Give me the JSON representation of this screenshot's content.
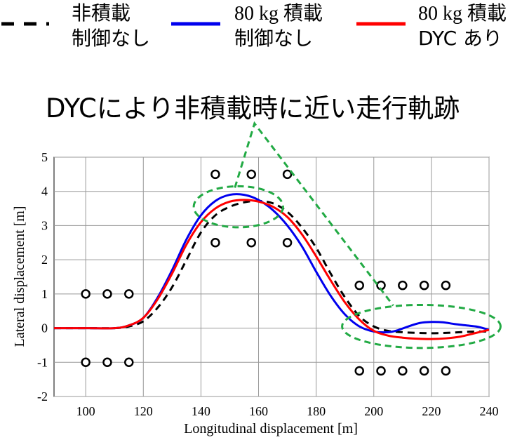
{
  "chart_data": {
    "type": "line",
    "title": "",
    "headline": "DYCにより非積載時に近い走行軌跡",
    "xlabel": "Longitudinal displacement [m]",
    "ylabel": "Lateral displacement [m]",
    "xlim": [
      89,
      240
    ],
    "ylim": [
      -2,
      5
    ],
    "xticks": [
      100,
      120,
      140,
      160,
      180,
      200,
      220,
      240
    ],
    "yticks": [
      -2,
      -1,
      0,
      1,
      2,
      3,
      4,
      5
    ],
    "grid": true,
    "legend": {
      "placement": "top",
      "entries": [
        {
          "line1": "非積載",
          "line2": "制御なし",
          "color": "#000000",
          "style": "dashed"
        },
        {
          "line1": "80 kg 積載",
          "line2": "制御なし",
          "color": "#0000ee",
          "style": "solid"
        },
        {
          "line1": "80 kg 積載",
          "line2": "DYC あり",
          "color": "#ff0000",
          "style": "solid"
        }
      ]
    },
    "series": [
      {
        "color": "#000000",
        "style": "dashed",
        "x": [
          89,
          100,
          110,
          115,
          120,
          125,
          130,
          135,
          140,
          145,
          150,
          155,
          160,
          165,
          170,
          175,
          180,
          185,
          190,
          195,
          200,
          205,
          210,
          215,
          220,
          225,
          230,
          235,
          240
        ],
        "y": [
          0,
          0,
          0,
          0.05,
          0.2,
          0.6,
          1.2,
          2.0,
          2.8,
          3.3,
          3.55,
          3.68,
          3.72,
          3.65,
          3.4,
          2.95,
          2.35,
          1.6,
          0.9,
          0.35,
          0.05,
          -0.08,
          -0.12,
          -0.14,
          -0.15,
          -0.14,
          -0.12,
          -0.1,
          -0.1
        ]
      },
      {
        "color": "#0000ee",
        "style": "solid",
        "x": [
          89,
          100,
          110,
          115,
          120,
          125,
          130,
          135,
          140,
          145,
          150,
          155,
          160,
          165,
          170,
          175,
          180,
          185,
          190,
          195,
          200,
          205,
          208,
          212,
          216,
          220,
          224,
          228,
          232,
          236,
          240
        ],
        "y": [
          0,
          0,
          0,
          0.08,
          0.3,
          0.9,
          1.7,
          2.6,
          3.3,
          3.72,
          3.9,
          3.9,
          3.75,
          3.45,
          3.0,
          2.4,
          1.65,
          0.95,
          0.4,
          0.05,
          -0.1,
          -0.12,
          -0.07,
          0.05,
          0.15,
          0.18,
          0.17,
          0.12,
          0.08,
          0.04,
          -0.05
        ]
      },
      {
        "color": "#ff0000",
        "style": "solid",
        "x": [
          89,
          100,
          110,
          115,
          120,
          125,
          130,
          135,
          140,
          145,
          150,
          155,
          160,
          165,
          170,
          175,
          180,
          185,
          190,
          195,
          200,
          205,
          210,
          215,
          220,
          225,
          230,
          235,
          240
        ],
        "y": [
          0,
          0,
          0,
          0.08,
          0.3,
          0.85,
          1.6,
          2.45,
          3.1,
          3.5,
          3.7,
          3.75,
          3.7,
          3.55,
          3.25,
          2.75,
          2.1,
          1.4,
          0.75,
          0.25,
          -0.08,
          -0.22,
          -0.28,
          -0.31,
          -0.32,
          -0.3,
          -0.25,
          -0.15,
          -0.05
        ]
      }
    ],
    "markers": [
      {
        "x": 100,
        "y": 1
      },
      {
        "x": 107.5,
        "y": 1
      },
      {
        "x": 115,
        "y": 1
      },
      {
        "x": 100,
        "y": -1
      },
      {
        "x": 107.5,
        "y": -1
      },
      {
        "x": 115,
        "y": -1
      },
      {
        "x": 145,
        "y": 4.5
      },
      {
        "x": 157.5,
        "y": 4.5
      },
      {
        "x": 170,
        "y": 4.5
      },
      {
        "x": 145,
        "y": 2.5
      },
      {
        "x": 157.5,
        "y": 2.5
      },
      {
        "x": 170,
        "y": 2.5
      },
      {
        "x": 195,
        "y": 1.25
      },
      {
        "x": 202.5,
        "y": 1.25
      },
      {
        "x": 210,
        "y": 1.25
      },
      {
        "x": 217.5,
        "y": 1.25
      },
      {
        "x": 225,
        "y": 1.25
      },
      {
        "x": 195,
        "y": -1.25
      },
      {
        "x": 202.5,
        "y": -1.25
      },
      {
        "x": 210,
        "y": -1.25
      },
      {
        "x": 217.5,
        "y": -1.25
      },
      {
        "x": 225,
        "y": -1.25
      }
    ],
    "annotation_ellipses": [
      {
        "cx": 153,
        "cy": 3.55,
        "rx": 15.5,
        "ry": 0.6,
        "color": "#22aa44"
      },
      {
        "cx": 216.5,
        "cy": 0.05,
        "rx": 27.5,
        "ry": 0.63,
        "color": "#22aa44"
      }
    ]
  }
}
